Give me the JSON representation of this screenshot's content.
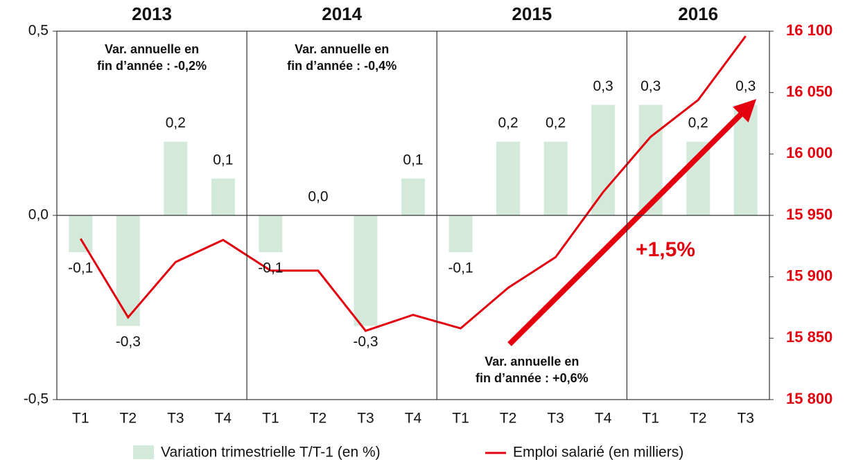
{
  "chart_data": {
    "type": "combo",
    "categories": [
      "T1",
      "T2",
      "T3",
      "T4",
      "T1",
      "T2",
      "T3",
      "T4",
      "T1",
      "T2",
      "T3",
      "T4",
      "T1",
      "T2",
      "T3"
    ],
    "years": [
      "2013",
      "2014",
      "2015",
      "2016"
    ],
    "series": [
      {
        "name": "Variation trimestrielle T/T-1 (en %)",
        "type": "bar",
        "axis": "y",
        "color": "#d3eadb",
        "values": [
          -0.1,
          -0.3,
          0.2,
          0.1,
          -0.1,
          0.0,
          -0.3,
          0.1,
          -0.1,
          0.2,
          0.2,
          0.3,
          0.3,
          0.2,
          0.3
        ],
        "value_labels": [
          "-0,1",
          "-0,3",
          "0,2",
          "0,1",
          "-0,1",
          "0,0",
          "-0,3",
          "0,1",
          "-0,1",
          "0,2",
          "0,2",
          "0,3",
          "0,3",
          "0,2",
          "0,3"
        ]
      },
      {
        "name": "Emploi salarié (en milliers)",
        "type": "line",
        "axis": "y2",
        "color": "#e3000f",
        "values": [
          15931,
          15867,
          15912,
          15930,
          15905,
          15905,
          15856,
          15869,
          15858,
          15891,
          15916,
          15969,
          16014,
          16044,
          16096
        ]
      }
    ],
    "ylim": [
      -0.5,
      0.5
    ],
    "yticks": [
      {
        "value": 0.5,
        "label": "0,5"
      },
      {
        "value": 0.0,
        "label": "0,0"
      },
      {
        "value": -0.5,
        "label": "-0,5"
      }
    ],
    "y2lim": [
      15800,
      16100
    ],
    "y2ticks": [
      {
        "value": 16100,
        "label": "16 100"
      },
      {
        "value": 16050,
        "label": "16 050"
      },
      {
        "value": 16000,
        "label": "16 000"
      },
      {
        "value": 15950,
        "label": "15 950"
      },
      {
        "value": 15900,
        "label": "15 900"
      },
      {
        "value": 15850,
        "label": "15 850"
      },
      {
        "value": 15800,
        "label": "15 800"
      }
    ],
    "annotations": [
      [
        "Var. annuelle en",
        "fin d’année : -0,2%"
      ],
      [
        "Var. annuelle en",
        "fin d’année : -0,4%"
      ],
      [
        "Var. annuelle en",
        "fin d’année : +0,6%"
      ]
    ],
    "growth_label": "+1,5%"
  }
}
